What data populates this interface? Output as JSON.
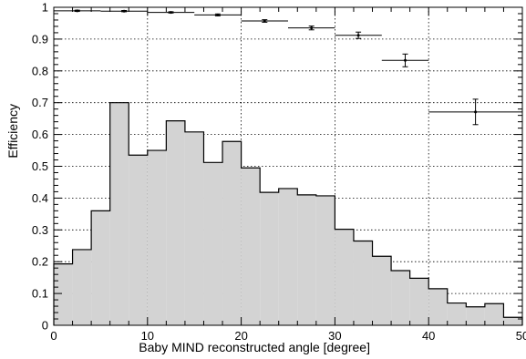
{
  "chart_data": {
    "type": "bar",
    "title": "",
    "xlabel": "Baby MIND reconstructed angle [degree]",
    "ylabel": "Efficiency",
    "xlim": [
      0,
      50
    ],
    "ylim": [
      0,
      1
    ],
    "grid": true,
    "x_ticks": [
      "0",
      "10",
      "20",
      "30",
      "40",
      "50"
    ],
    "y_ticks": [
      "0",
      "0.1",
      "0.2",
      "0.3",
      "0.4",
      "0.5",
      "0.6",
      "0.7",
      "0.8",
      "0.9",
      "1"
    ],
    "series": [
      {
        "type": "histogram",
        "fill_color": "#d3d3d3",
        "line_color": "#000000",
        "bin_edges": [
          0,
          2,
          4,
          6,
          8,
          10,
          12,
          14,
          16,
          18,
          20,
          22,
          24,
          26,
          28,
          30,
          32,
          34,
          36,
          38,
          40,
          42,
          44,
          46,
          48,
          50
        ],
        "values": [
          0.193,
          0.238,
          0.36,
          0.7,
          0.535,
          0.55,
          0.643,
          0.608,
          0.512,
          0.578,
          0.495,
          0.418,
          0.43,
          0.41,
          0.407,
          0.302,
          0.265,
          0.217,
          0.172,
          0.148,
          0.115,
          0.07,
          0.058,
          0.068,
          0.025
        ]
      },
      {
        "type": "errorbar",
        "line_color": "#000000",
        "points": [
          {
            "x": 2.5,
            "y": 0.989,
            "xerr": 2.5,
            "yerr": 0.002
          },
          {
            "x": 7.5,
            "y": 0.988,
            "xerr": 2.5,
            "yerr": 0.002
          },
          {
            "x": 12.5,
            "y": 0.984,
            "xerr": 2.5,
            "yerr": 0.002
          },
          {
            "x": 17.5,
            "y": 0.976,
            "xerr": 2.5,
            "yerr": 0.003
          },
          {
            "x": 22.5,
            "y": 0.957,
            "xerr": 2.5,
            "yerr": 0.004
          },
          {
            "x": 27.5,
            "y": 0.935,
            "xerr": 2.5,
            "yerr": 0.006
          },
          {
            "x": 32.5,
            "y": 0.912,
            "xerr": 2.5,
            "yerr": 0.01
          },
          {
            "x": 37.5,
            "y": 0.833,
            "xerr": 2.5,
            "yerr": 0.02
          },
          {
            "x": 45,
            "y": 0.671,
            "xerr": 5,
            "yerr": 0.04
          }
        ]
      }
    ]
  }
}
